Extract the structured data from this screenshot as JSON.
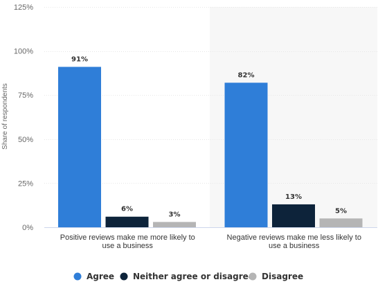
{
  "chart_data": {
    "type": "bar",
    "categories": [
      "Positive reviews make me more likely to use a business",
      "Negative reviews make me less likely to use a business"
    ],
    "series": [
      {
        "name": "Agree",
        "values": [
          91,
          82
        ],
        "color": "#2f7ed8"
      },
      {
        "name": "Neither agree or disagree",
        "values": [
          6,
          13
        ],
        "color": "#0d233a"
      },
      {
        "name": "Disagree",
        "values": [
          3,
          5
        ],
        "color": "#b5b5b5"
      }
    ],
    "title": "",
    "xlabel": "",
    "ylabel": "Share of respondents",
    "ylim": [
      0,
      125
    ],
    "yticks": [
      0,
      25,
      50,
      75,
      100,
      125
    ],
    "ytick_labels": [
      "0%",
      "25%",
      "50%",
      "75%",
      "100%",
      "125%"
    ],
    "data_labels": [
      [
        "91%",
        "82%"
      ],
      [
        "6%",
        "13%"
      ],
      [
        "3%",
        "5%"
      ]
    ],
    "category_label_lines": [
      [
        "Positive reviews make me more likely to",
        "use a business"
      ],
      [
        "Negative reviews make me less likely to",
        "use a business"
      ]
    ],
    "grid": true,
    "legend_position": "bottom-center"
  }
}
